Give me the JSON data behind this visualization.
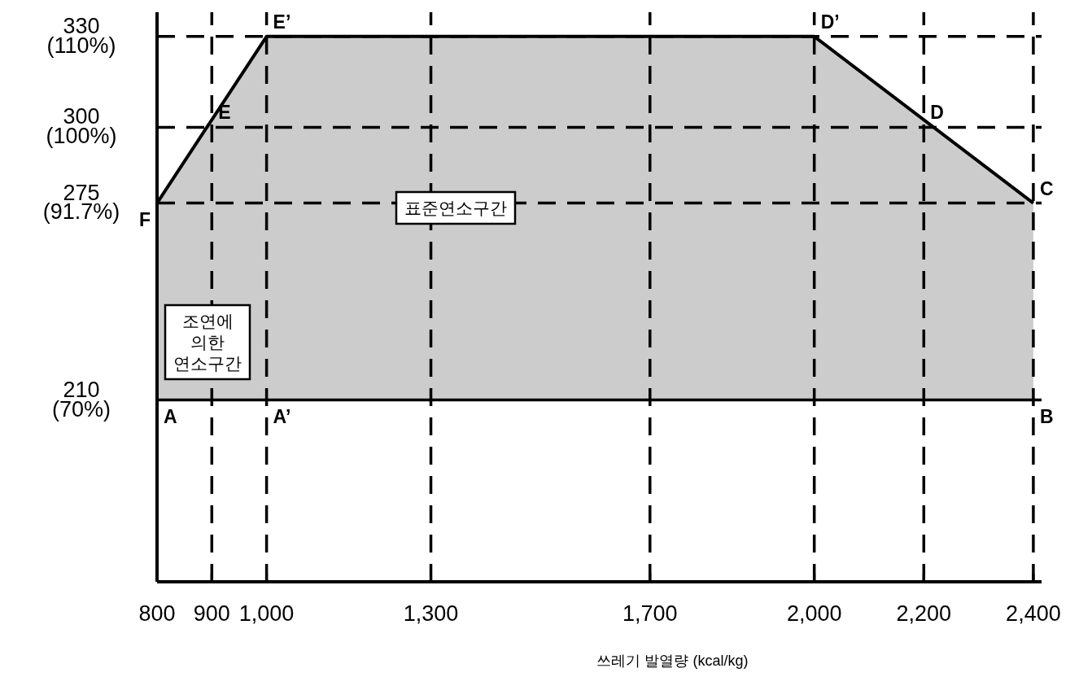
{
  "chart_data": {
    "type": "line",
    "xlabel": "쓰레기 발열량 (kcal/kg)",
    "xlim": [
      800,
      2415
    ],
    "ylim": [
      150,
      338
    ],
    "xticks": [
      800,
      900,
      {
        "value": 1000,
        "label": "1,000"
      },
      {
        "value": 1300,
        "label": "1,300"
      },
      {
        "value": 1700,
        "label": "1,700"
      },
      {
        "value": 2000,
        "label": "2,000"
      },
      {
        "value": 2200,
        "label": "2,200"
      },
      {
        "value": 2400,
        "label": "2,400"
      }
    ],
    "yticks": [
      210,
      275,
      300,
      330
    ],
    "y2lim": [
      50,
      112.667
    ],
    "y2ticks": [
      {
        "value": 70,
        "label": "(70%)"
      },
      {
        "value": 91.7,
        "label": "(91.7%)"
      },
      {
        "value": 100,
        "label": "(100%)"
      },
      {
        "value": 110,
        "label": "(110%)"
      }
    ],
    "series": [
      {
        "color": "#000000",
        "x": [
          800,
          1000,
          2000,
          2400
        ],
        "values": [
          275,
          330,
          330,
          275
        ],
        "lower": [
          210,
          210,
          210,
          210
        ],
        "upper": [
          275,
          330,
          330,
          275
        ]
      }
    ],
    "ref_lines": [
      {
        "axis": "x",
        "value": 900,
        "line_style": "dashed"
      },
      {
        "axis": "x",
        "value": 1000,
        "line_style": "dashed"
      },
      {
        "axis": "x",
        "value": 1300,
        "line_style": "dashed"
      },
      {
        "axis": "x",
        "value": 1700,
        "line_style": "dashed"
      },
      {
        "axis": "x",
        "value": 2000,
        "line_style": "dashed"
      },
      {
        "axis": "x",
        "value": 2200,
        "line_style": "dashed"
      },
      {
        "axis": "x",
        "value": 2400,
        "line_style": "dashed"
      },
      {
        "axis": "y",
        "value": 210,
        "line_style": "solid"
      },
      {
        "axis": "y",
        "value": 275,
        "line_style": "dashed"
      },
      {
        "axis": "y",
        "value": 300,
        "line_style": "dashed"
      },
      {
        "axis": "y",
        "value": 330,
        "line_style": "dashed"
      }
    ],
    "annotations": [
      {
        "text": "A",
        "x": 800,
        "y": 210
      },
      {
        "text": "A’",
        "x": 1000,
        "y": 210
      },
      {
        "text": "B",
        "x": 2400,
        "y": 210
      },
      {
        "text": "C",
        "x": 2400,
        "y": 275
      },
      {
        "text": "D",
        "x": 2200,
        "y": 300
      },
      {
        "text": "D’",
        "x": 2000,
        "y": 330
      },
      {
        "text": "E",
        "x": 900,
        "y": 300
      },
      {
        "text": "E’",
        "x": 1000,
        "y": 330
      },
      {
        "text": "F",
        "x": 800,
        "y": 275
      },
      "표준연소구간",
      "조연에\n의한\n연소구간"
    ]
  }
}
